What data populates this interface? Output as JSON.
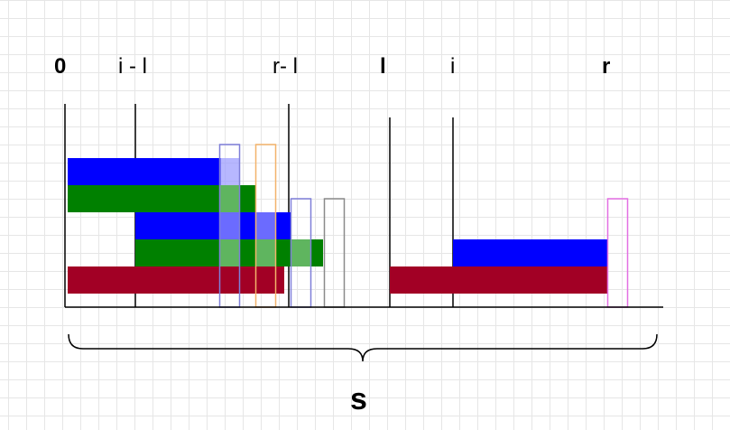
{
  "labels": {
    "zero": "0",
    "i_minus_l": "i - l",
    "r_minus_l": "r- l",
    "l": "l",
    "i": "i",
    "r": "r",
    "s": "s"
  },
  "colors": {
    "blue": "#0000ff",
    "green": "#008000",
    "crimson": "#a20025",
    "outline_blue": "#7f7fd8",
    "outline_orange": "#f3b36b",
    "outline_gray": "#8a8a8a",
    "outline_pink": "#e36fe3",
    "overlay_blue": "#9999ff",
    "overlay_green": "#88cc88"
  }
}
